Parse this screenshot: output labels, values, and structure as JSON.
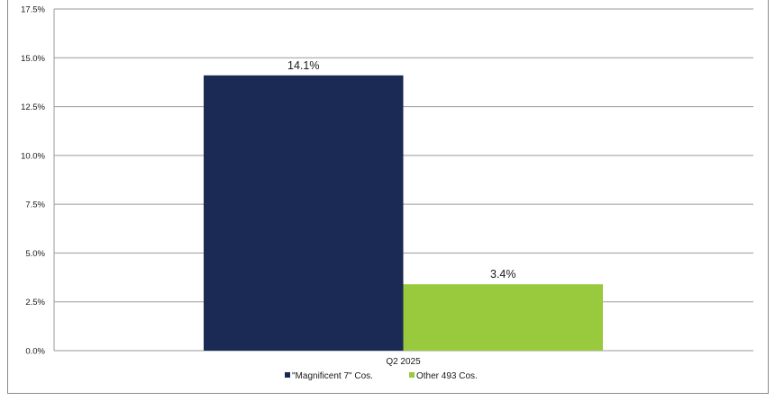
{
  "chart_data": {
    "type": "bar",
    "categories": [
      "Q2 2025"
    ],
    "series": [
      {
        "name": "\"Magnificent 7\" Cos.",
        "values": [
          14.1
        ],
        "color": "#1a2a54",
        "label": "14.1%"
      },
      {
        "name": "Other 493 Cos.",
        "values": [
          3.4
        ],
        "color": "#99c93c",
        "label": "3.4%"
      }
    ],
    "ylim": [
      0,
      17.5
    ],
    "yticks": [
      0,
      2.5,
      5,
      7.5,
      10,
      12.5,
      15,
      17.5
    ],
    "ytick_labels": [
      "0.0%",
      "2.5%",
      "5.0%",
      "7.5%",
      "10.0%",
      "12.5%",
      "15.0%",
      "17.5%"
    ],
    "grid": true,
    "legend_position": "bottom"
  }
}
